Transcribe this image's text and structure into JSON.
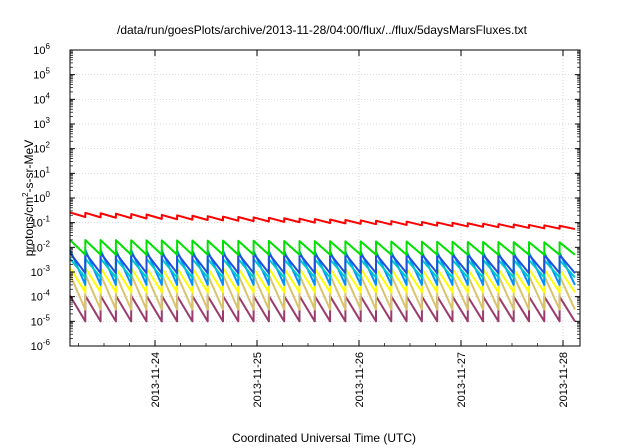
{
  "chart_data": {
    "type": "line",
    "title": "/data/run/goesPlots/archive/2013-11-28/04:00/flux/../flux/5daysMarsFluxes.txt",
    "xlabel": "Coordinated Universal Time (UTC)",
    "ylabel": {
      "pre": "protons/cm",
      "sup": "2",
      "post": "-s-sr-MeV"
    },
    "yscale": "log",
    "ylim_exponents": [
      -6,
      6
    ],
    "y_tick_base": "10",
    "y_tick_exponents": [
      "-6",
      "-5",
      "-4",
      "-3",
      "-2",
      "-1",
      "0",
      "1",
      "2",
      "3",
      "4",
      "5",
      "6"
    ],
    "x_start": "2013-11-23T04:00",
    "x_end": "2013-11-28T04:00",
    "x_tick_dates": [
      "2013-11-24",
      "2013-11-25",
      "2013-11-26",
      "2013-11-27",
      "2013-11-28"
    ],
    "grid": true,
    "sawtooth_period_hours": 3.6,
    "series": [
      {
        "color": "#9b3b6d",
        "peak_start": 0.00011,
        "peak_end": 0.0001,
        "trough": 1e-05
      },
      {
        "color": "#d9c36d",
        "peak_start": 0.0008,
        "peak_end": 0.0007,
        "trough": 3e-05
      },
      {
        "color": "#ffff00",
        "peak_start": 0.0015,
        "peak_end": 0.0013,
        "trough": 0.00015
      },
      {
        "color": "#0090ff",
        "peak_start": 0.008,
        "peak_end": 0.006,
        "trough": 0.0003
      },
      {
        "color": "#00c8c8",
        "peak_start": 0.0035,
        "peak_end": 0.003,
        "trough": 0.0006
      },
      {
        "color": "#1e50dc",
        "peak_start": 0.006,
        "peak_end": 0.005,
        "trough": 0.0009
      },
      {
        "color": "#00e000",
        "peak_start": 0.02,
        "peak_end": 0.016,
        "trough": 0.005
      },
      {
        "color": "#ff0000",
        "peak_start": 0.26,
        "peak_end": 0.075,
        "trough": 0.17,
        "trough_end": 0.055
      }
    ]
  }
}
